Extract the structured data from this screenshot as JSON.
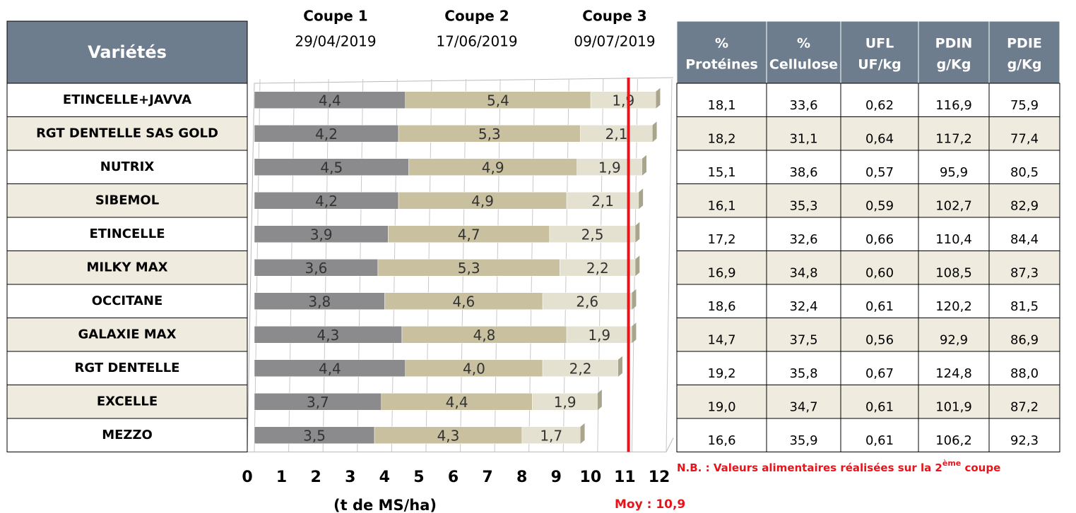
{
  "varieties_header": "Variétés",
  "chart_data": {
    "type": "bar",
    "orientation": "horizontal",
    "stacked": true,
    "categories": [
      "ETINCELLE+JAVVA",
      "RGT DENTELLE SAS GOLD",
      "NUTRIX",
      "SIBEMOL",
      "ETINCELLE",
      "MILKY MAX",
      "OCCITANE",
      "GALAXIE MAX",
      "RGT DENTELLE",
      "EXCELLE",
      "MEZZO"
    ],
    "series": [
      {
        "name": "Coupe 1",
        "date": "29/04/2019",
        "color": "#8b8b8d",
        "values": [
          4.4,
          4.2,
          4.5,
          4.2,
          3.9,
          3.6,
          3.8,
          4.3,
          4.4,
          3.7,
          3.5
        ],
        "value_labels": [
          "4,4",
          "4,2",
          "4,5",
          "4,2",
          "3,9",
          "3,6",
          "3,8",
          "4,3",
          "4,4",
          "3,7",
          "3,5"
        ]
      },
      {
        "name": "Coupe 2",
        "date": "17/06/2019",
        "color": "#c8c09f",
        "values": [
          5.4,
          5.3,
          4.9,
          4.9,
          4.7,
          5.3,
          4.6,
          4.8,
          4.0,
          4.4,
          4.3
        ],
        "value_labels": [
          "5,4",
          "5,3",
          "4,9",
          "4,9",
          "4,7",
          "5,3",
          "4,6",
          "4,8",
          "4,0",
          "4,4",
          "4,3"
        ]
      },
      {
        "name": "Coupe 3",
        "date": "09/07/2019",
        "color": "#e5e1d0",
        "values": [
          1.9,
          2.1,
          1.9,
          2.1,
          2.5,
          2.2,
          2.6,
          1.9,
          2.2,
          1.9,
          1.7
        ],
        "value_labels": [
          "1,9",
          "2,1",
          "1,9",
          "2,1",
          "2,5",
          "2,2",
          "2,6",
          "1,9",
          "2,2",
          "1,9",
          "1,7"
        ]
      }
    ],
    "xlim": [
      0,
      12
    ],
    "xticks": [
      0,
      1,
      2,
      3,
      4,
      5,
      6,
      7,
      8,
      9,
      10,
      11,
      12
    ],
    "xlabel": "(t de MS/ha)",
    "grid": true,
    "mean_line": {
      "value": 10.9,
      "label": "Moy : 10,9",
      "color": "#e8141b"
    }
  },
  "nutrition_table": {
    "headers": [
      [
        "%",
        "Protéines"
      ],
      [
        "%",
        "Cellulose"
      ],
      [
        "UFL",
        "UF/kg"
      ],
      [
        "PDIN",
        "g/Kg"
      ],
      [
        "PDIE",
        "g/Kg"
      ]
    ],
    "rows": [
      [
        "18,1",
        "33,6",
        "0,62",
        "116,9",
        "75,9"
      ],
      [
        "18,2",
        "31,1",
        "0,64",
        "117,2",
        "77,4"
      ],
      [
        "15,1",
        "38,6",
        "0,57",
        "95,9",
        "80,5"
      ],
      [
        "16,1",
        "35,3",
        "0,59",
        "102,7",
        "82,9"
      ],
      [
        "17,2",
        "32,6",
        "0,66",
        "110,4",
        "84,4"
      ],
      [
        "16,9",
        "34,8",
        "0,60",
        "108,5",
        "87,3"
      ],
      [
        "18,6",
        "32,4",
        "0,61",
        "120,2",
        "81,5"
      ],
      [
        "14,7",
        "37,5",
        "0,56",
        "92,9",
        "86,9"
      ],
      [
        "19,2",
        "35,8",
        "0,67",
        "124,8",
        "88,0"
      ],
      [
        "19,0",
        "34,7",
        "0,61",
        "101,9",
        "87,2"
      ],
      [
        "16,6",
        "35,9",
        "0,61",
        "106,2",
        "92,3"
      ]
    ]
  },
  "note": [
    "N.B. : Valeurs alimentaires réalisées sur la 2",
    "ème",
    " coupe"
  ]
}
